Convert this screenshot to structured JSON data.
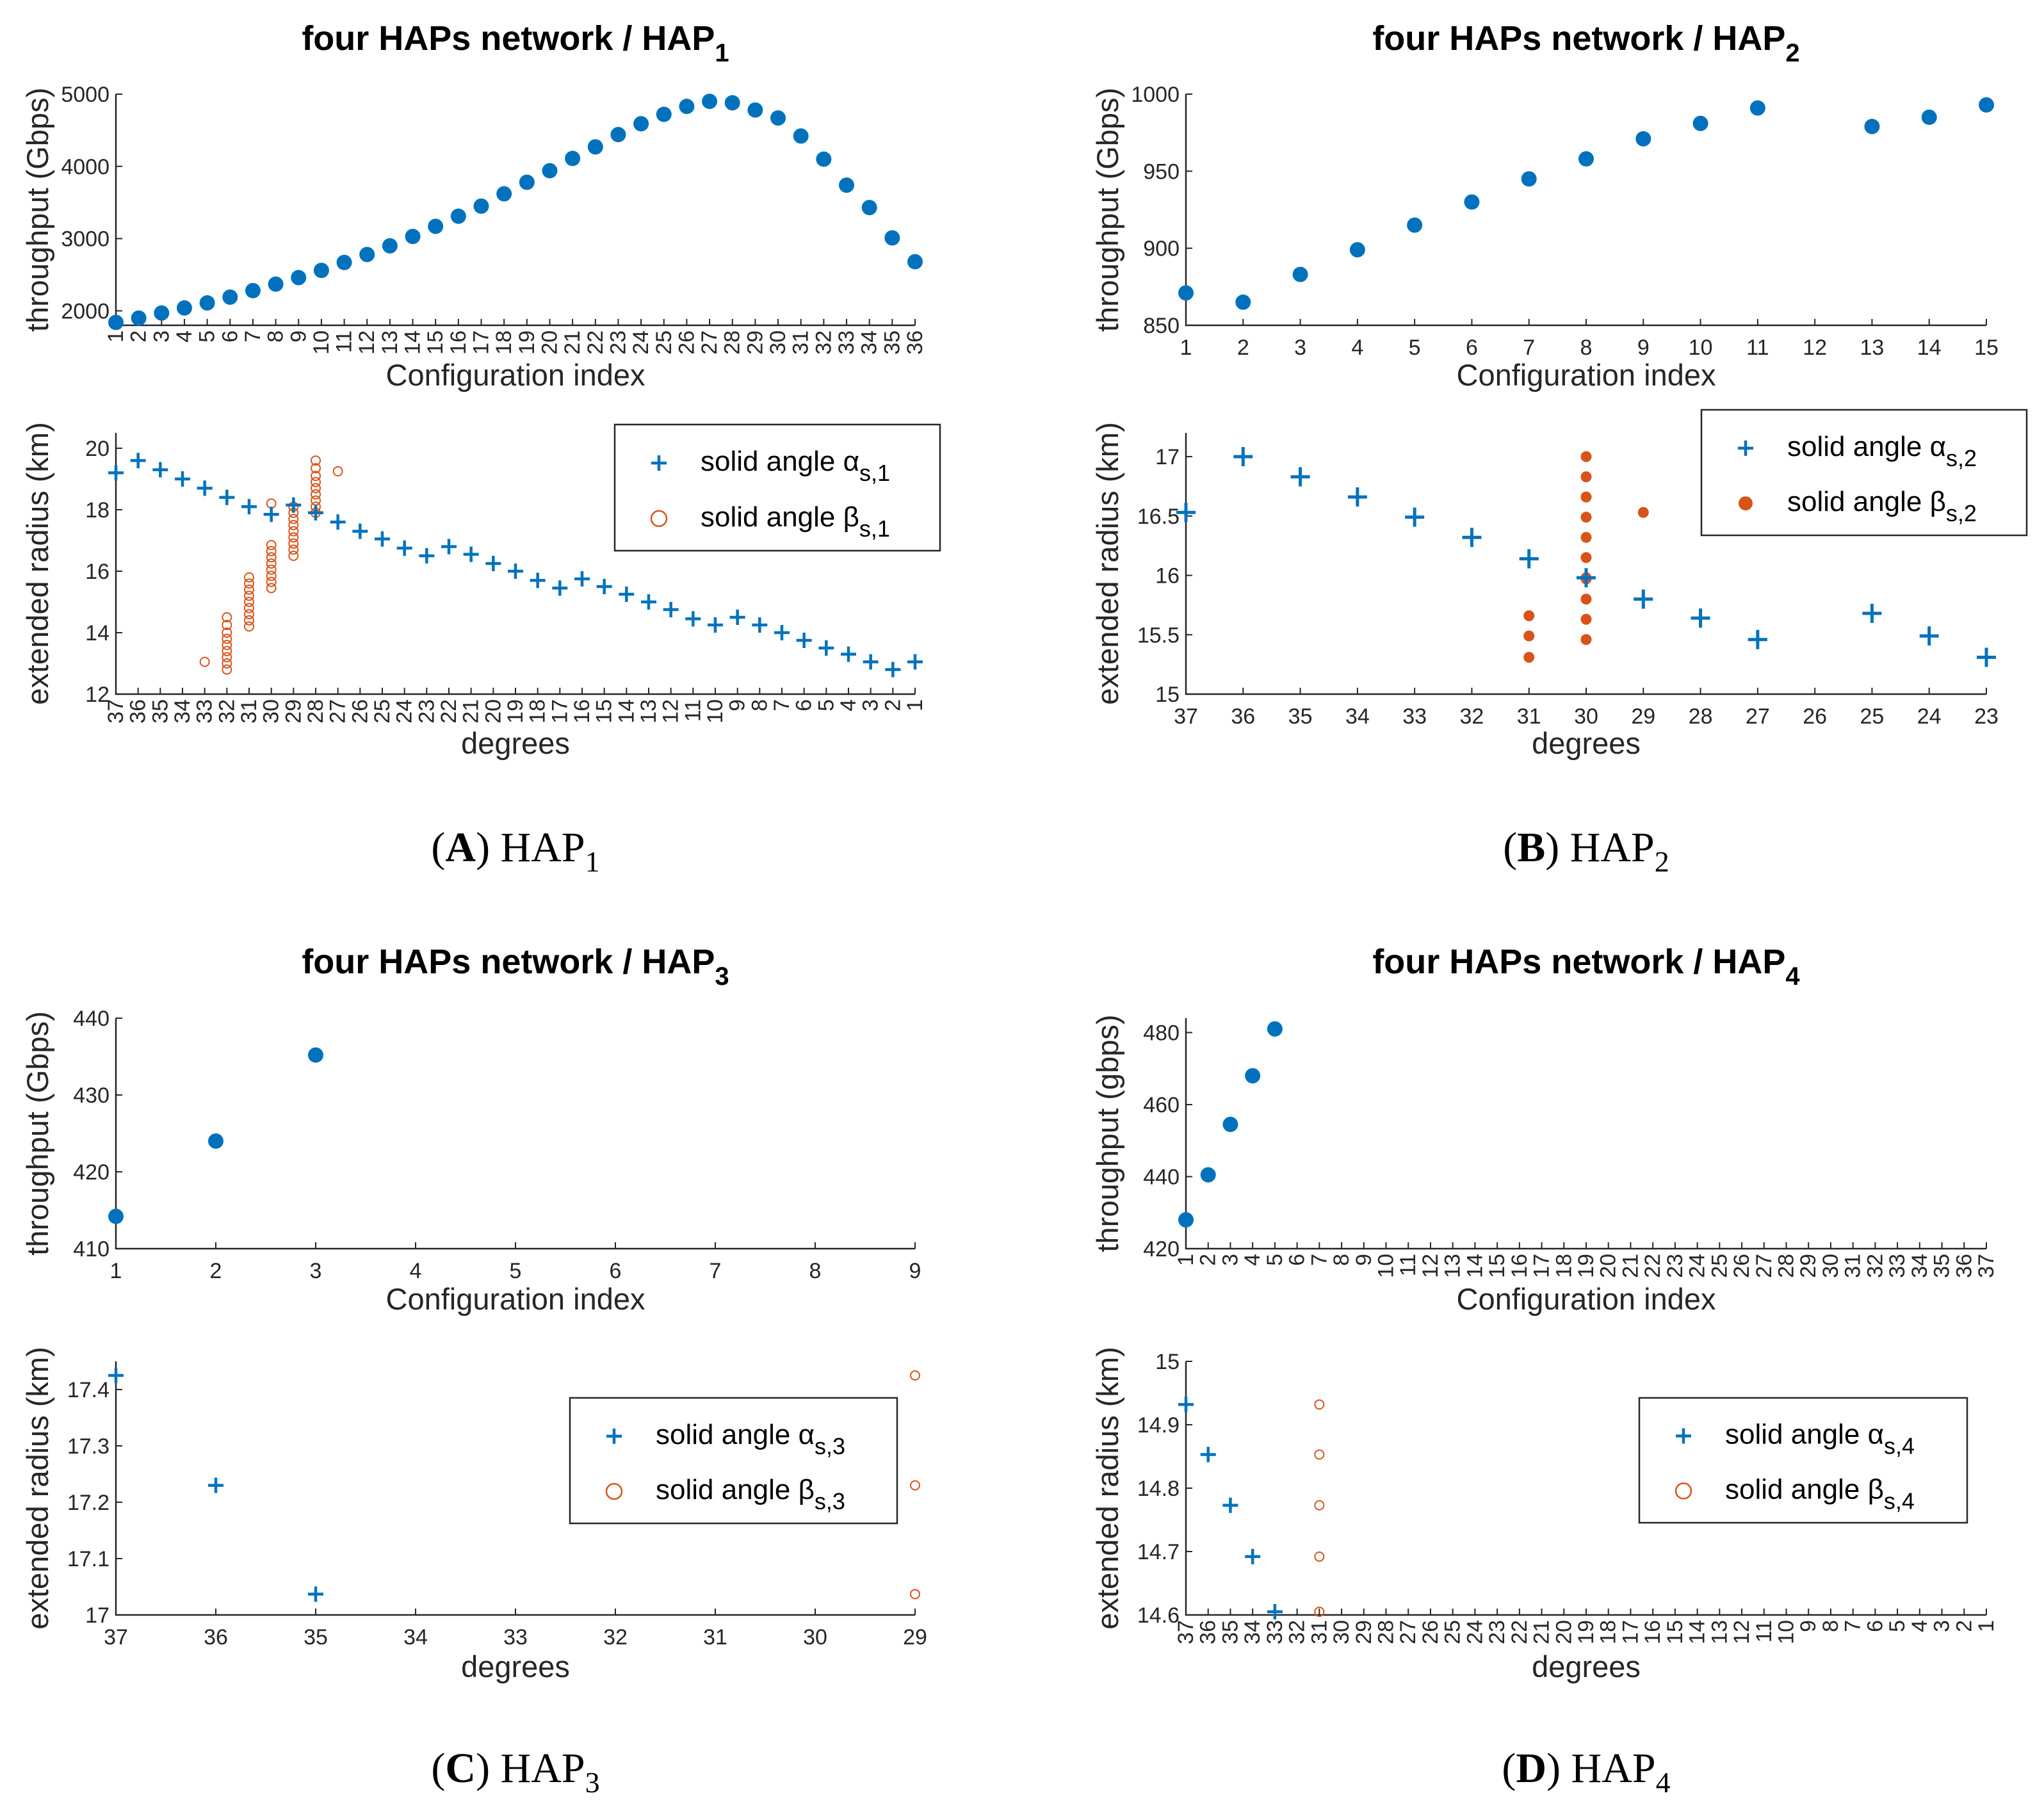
{
  "colors": {
    "blue": "#0072BD",
    "orange": "#D95319",
    "axis": "#262626"
  },
  "chart_data": [
    {
      "id": "A",
      "caption": {
        "letter": "A",
        "name": "HAP",
        "sub": "1"
      },
      "throughput": {
        "type": "scatter",
        "title": "four HAPs network / HAP",
        "title_sub": "1",
        "xlabel": "Configuration index",
        "ylabel": "throughput (Gbps)",
        "ylim": [
          1800,
          5000
        ],
        "yticks": [
          2000,
          3000,
          4000,
          5000
        ],
        "xticks": [
          "1",
          "2",
          "3",
          "4",
          "5",
          "6",
          "7",
          "8",
          "9",
          "10",
          "11",
          "12",
          "13",
          "14",
          "15",
          "16",
          "17",
          "18",
          "19",
          "20",
          "21",
          "22",
          "23",
          "24",
          "25",
          "26",
          "27",
          "28",
          "29",
          "30",
          "31",
          "32",
          "33",
          "34",
          "35",
          "36"
        ],
        "xtick_rotate": true,
        "x": [
          1,
          2,
          3,
          4,
          5,
          6,
          7,
          8,
          9,
          10,
          11,
          12,
          13,
          14,
          15,
          16,
          17,
          18,
          19,
          20,
          21,
          22,
          23,
          24,
          25,
          26,
          27,
          28,
          29,
          30,
          31,
          32,
          33,
          34,
          35,
          36
        ],
        "y": [
          1840,
          1900,
          1970,
          2040,
          2110,
          2190,
          2280,
          2370,
          2460,
          2560,
          2670,
          2780,
          2900,
          3030,
          3170,
          3310,
          3450,
          3620,
          3780,
          3940,
          4110,
          4270,
          4440,
          4590,
          4720,
          4830,
          4900,
          4880,
          4780,
          4670,
          4420,
          4100,
          3740,
          3430,
          3010,
          2680
        ]
      },
      "radius": {
        "type": "scatter",
        "xlabel": "degrees",
        "ylabel": "extended radius (km)",
        "ylim": [
          12,
          20.5
        ],
        "yticks": [
          12,
          14,
          16,
          18,
          20
        ],
        "xticks": [
          "37",
          "36",
          "35",
          "34",
          "33",
          "32",
          "31",
          "30",
          "29",
          "28",
          "27",
          "26",
          "25",
          "24",
          "23",
          "22",
          "21",
          "20",
          "19",
          "18",
          "17",
          "16",
          "15",
          "14",
          "13",
          "12",
          "11",
          "10",
          "9",
          "8",
          "7",
          "6",
          "5",
          "4",
          "3",
          "2",
          "1"
        ],
        "xlim": [
          37,
          1
        ],
        "xtick_rotate": true,
        "legend": {
          "position": "top-right",
          "alpha_label": "solid angle α",
          "alpha_sub": "s,1",
          "beta_label": "solid angle β",
          "beta_sub": "s,1",
          "beta_style": "open"
        },
        "alpha": {
          "x": [
            37,
            36,
            35,
            34,
            33,
            32,
            31,
            30,
            29,
            28,
            27,
            26,
            25,
            24,
            23,
            22,
            21,
            20,
            19,
            18,
            17,
            16,
            15,
            14,
            13,
            12,
            11,
            10,
            9,
            8,
            7,
            6,
            5,
            4,
            3,
            2,
            1
          ],
          "y": [
            19.2,
            19.6,
            19.3,
            19.0,
            18.7,
            18.4,
            18.1,
            17.85,
            18.15,
            17.9,
            17.6,
            17.3,
            17.05,
            16.75,
            16.5,
            16.8,
            16.55,
            16.25,
            16.0,
            15.7,
            15.45,
            15.75,
            15.5,
            15.25,
            15.0,
            14.75,
            14.45,
            14.25,
            14.5,
            14.25,
            14.0,
            13.75,
            13.5,
            13.3,
            13.05,
            12.8,
            13.05
          ]
        },
        "beta": {
          "x": [
            33,
            32,
            32,
            32,
            32,
            32,
            32,
            32,
            32,
            32,
            31,
            31,
            31,
            31,
            31,
            31,
            31,
            31,
            31,
            30,
            30,
            30,
            30,
            30,
            30,
            30,
            30,
            30,
            29,
            29,
            29,
            29,
            29,
            29,
            29,
            29,
            29,
            28,
            28,
            28,
            28,
            28,
            28,
            28,
            28,
            28,
            27
          ],
          "y": [
            13.05,
            12.8,
            13.0,
            13.2,
            13.4,
            13.6,
            13.8,
            14.0,
            14.25,
            14.5,
            14.2,
            14.4,
            14.6,
            14.8,
            15.0,
            15.2,
            15.4,
            15.6,
            15.8,
            15.45,
            15.65,
            15.85,
            16.05,
            16.25,
            16.45,
            16.65,
            16.85,
            18.2,
            16.5,
            16.7,
            16.9,
            17.1,
            17.3,
            17.5,
            17.7,
            17.9,
            18.1,
            17.9,
            18.1,
            18.3,
            18.5,
            18.7,
            18.9,
            19.1,
            19.35,
            19.6,
            19.25
          ]
        }
      }
    },
    {
      "id": "B",
      "caption": {
        "letter": "B",
        "name": "HAP",
        "sub": "2"
      },
      "throughput": {
        "type": "scatter",
        "title": "four HAPs network / HAP",
        "title_sub": "2",
        "xlabel": "Configuration index",
        "ylabel": "throughput (Gbps)",
        "ylim": [
          850,
          1000
        ],
        "yticks": [
          850,
          900,
          950,
          1000
        ],
        "xticks": [
          "1",
          "2",
          "3",
          "4",
          "5",
          "6",
          "7",
          "8",
          "9",
          "10",
          "11",
          "12",
          "13",
          "14",
          "15"
        ],
        "xtick_rotate": false,
        "x": [
          1,
          2,
          3,
          4,
          5,
          6,
          7,
          8,
          9,
          10,
          11,
          13,
          14,
          15
        ],
        "y": [
          871,
          865,
          883,
          899,
          915,
          930,
          945,
          958,
          971,
          981,
          991,
          979,
          985,
          993
        ]
      },
      "radius": {
        "type": "scatter",
        "xlabel": "degrees",
        "ylabel": "extended radius (km)",
        "ylim": [
          15,
          17.2
        ],
        "yticks": [
          15,
          15.5,
          16,
          16.5,
          17
        ],
        "xticks": [
          "37",
          "36",
          "35",
          "34",
          "33",
          "32",
          "31",
          "30",
          "29",
          "28",
          "27",
          "26",
          "25",
          "24",
          "23"
        ],
        "xlim": [
          37,
          23
        ],
        "xtick_rotate": false,
        "legend": {
          "position": "top-right",
          "alpha_label": "solid angle α",
          "alpha_sub": "s,2",
          "beta_label": "solid angle β",
          "beta_sub": "s,2",
          "beta_style": "filled"
        },
        "alpha": {
          "x": [
            37,
            36,
            35,
            34,
            33,
            32,
            31,
            30,
            29,
            28,
            27,
            25,
            24,
            23
          ],
          "y": [
            16.53,
            17.0,
            16.83,
            16.66,
            16.49,
            16.32,
            16.14,
            15.98,
            15.8,
            15.64,
            15.46,
            15.68,
            15.49,
            15.31
          ]
        },
        "beta": {
          "x": [
            31,
            31,
            31,
            30,
            30,
            30,
            30,
            30,
            30,
            30,
            30,
            30,
            30,
            30,
            29
          ],
          "y": [
            15.31,
            15.49,
            15.66,
            15.46,
            15.63,
            15.8,
            15.98,
            16.15,
            16.32,
            16.49,
            16.66,
            16.83,
            17.0,
            15.97,
            16.53
          ]
        }
      }
    },
    {
      "id": "C",
      "caption": {
        "letter": "C",
        "name": "HAP",
        "sub": "3"
      },
      "throughput": {
        "type": "scatter",
        "title": "four HAPs network / HAP",
        "title_sub": "3",
        "xlabel": "Configuration index",
        "ylabel": "throughput (Gbps)",
        "ylim": [
          410,
          440
        ],
        "yticks": [
          410,
          420,
          430,
          440
        ],
        "xticks": [
          "1",
          "2",
          "3",
          "4",
          "5",
          "6",
          "7",
          "8",
          "9"
        ],
        "xtick_rotate": false,
        "x": [
          1,
          2,
          3
        ],
        "y": [
          414.2,
          424.0,
          435.2
        ]
      },
      "radius": {
        "type": "scatter",
        "xlabel": "degrees",
        "ylabel": "extended radius (km)",
        "ylim": [
          17,
          17.45
        ],
        "yticks": [
          17,
          17.1,
          17.2,
          17.3,
          17.4
        ],
        "xticks": [
          "37",
          "36",
          "35",
          "34",
          "33",
          "32",
          "31",
          "30",
          "29"
        ],
        "xlim": [
          37,
          29
        ],
        "xtick_rotate": false,
        "legend": {
          "position": "middle-right",
          "alpha_label": "solid angle α",
          "alpha_sub": "s,3",
          "beta_label": "solid angle β",
          "beta_sub": "s,3",
          "beta_style": "open"
        },
        "alpha": {
          "x": [
            37,
            36,
            35
          ],
          "y": [
            17.425,
            17.23,
            17.037
          ]
        },
        "beta": {
          "x": [
            29,
            29,
            29
          ],
          "y": [
            17.425,
            17.23,
            17.037
          ]
        }
      }
    },
    {
      "id": "D",
      "caption": {
        "letter": "D",
        "name": "HAP",
        "sub": "4"
      },
      "throughput": {
        "type": "scatter",
        "title": "four HAPs network / HAP",
        "title_sub": "4",
        "xlabel": "Configuration index",
        "ylabel": "throughput (gbps)",
        "ylim": [
          420,
          484
        ],
        "yticks": [
          420,
          440,
          460,
          480
        ],
        "xticks": [
          "1",
          "2",
          "3",
          "4",
          "5",
          "6",
          "7",
          "8",
          "9",
          "10",
          "11",
          "12",
          "13",
          "14",
          "15",
          "16",
          "17",
          "18",
          "19",
          "20",
          "21",
          "22",
          "23",
          "24",
          "25",
          "26",
          "27",
          "28",
          "29",
          "30",
          "31",
          "32",
          "33",
          "34",
          "35",
          "36",
          "37"
        ],
        "xtick_rotate": true,
        "x": [
          1,
          2,
          3,
          4,
          5
        ],
        "y": [
          428,
          440.5,
          454.5,
          468,
          481
        ]
      },
      "radius": {
        "type": "scatter",
        "xlabel": "degrees",
        "ylabel": "extended radius (km)",
        "ylim": [
          14.6,
          15
        ],
        "yticks": [
          14.6,
          14.7,
          14.8,
          14.9,
          15
        ],
        "xticks": [
          "37",
          "36",
          "35",
          "34",
          "33",
          "32",
          "31",
          "30",
          "29",
          "28",
          "27",
          "26",
          "25",
          "24",
          "23",
          "22",
          "21",
          "20",
          "19",
          "18",
          "17",
          "16",
          "15",
          "14",
          "13",
          "12",
          "11",
          "10",
          "9",
          "8",
          "7",
          "6",
          "5",
          "4",
          "3",
          "2",
          "1"
        ],
        "xlim": [
          37,
          1
        ],
        "xtick_rotate": true,
        "legend": {
          "position": "top-right",
          "alpha_label": "solid angle α",
          "alpha_sub": "s,4",
          "beta_label": "solid angle β",
          "beta_sub": "s,4",
          "beta_style": "open"
        },
        "alpha": {
          "x": [
            37,
            36,
            35,
            34,
            33
          ],
          "y": [
            14.932,
            14.853,
            14.773,
            14.692,
            14.605
          ]
        },
        "beta": {
          "x": [
            31,
            31,
            31,
            31,
            31
          ],
          "y": [
            14.932,
            14.853,
            14.773,
            14.692,
            14.605
          ]
        }
      }
    }
  ]
}
